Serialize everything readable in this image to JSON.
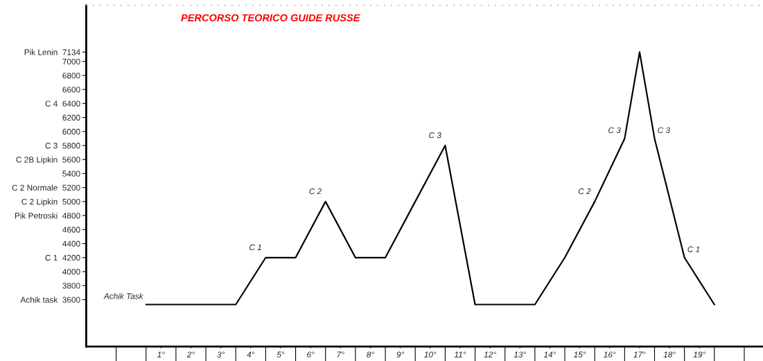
{
  "chart_data": {
    "type": "line",
    "title": "PERCORSO TEORICO GUIDE RUSSE",
    "x": [
      0.5,
      3.5,
      4.5,
      5.5,
      6.5,
      7.5,
      8.5,
      9.5,
      10.5,
      11.5,
      13.5,
      14.5,
      15.5,
      16.5,
      17,
      17.5,
      18.5,
      19.5
    ],
    "series": [
      {
        "color": "#000000",
        "values": [
          3530,
          3530,
          4200,
          4200,
          5000,
          4200,
          4200,
          5000,
          5800,
          3530,
          3530,
          4200,
          5000,
          5900,
          7134,
          5900,
          4200,
          3530
        ]
      }
    ],
    "xlim": [
      -1.5,
      21.1
    ],
    "xticks": [
      {
        "value": 1,
        "label": "1°"
      },
      {
        "value": 2,
        "label": "2°"
      },
      {
        "value": 3,
        "label": "3°"
      },
      {
        "value": 4,
        "label": "4°"
      },
      {
        "value": 5,
        "label": "5°"
      },
      {
        "value": 6,
        "label": "6°"
      },
      {
        "value": 7,
        "label": "7°"
      },
      {
        "value": 8,
        "label": "8°"
      },
      {
        "value": 9,
        "label": "9°"
      },
      {
        "value": 10,
        "label": "10°"
      },
      {
        "value": 11,
        "label": "11°"
      },
      {
        "value": 12,
        "label": "12°"
      },
      {
        "value": 13,
        "label": "13°"
      },
      {
        "value": 14,
        "label": "14°"
      },
      {
        "value": 15,
        "label": "15°"
      },
      {
        "value": 16,
        "label": "16°"
      },
      {
        "value": 17,
        "label": "17°"
      },
      {
        "value": 18,
        "label": "18°"
      },
      {
        "value": 19,
        "label": "19°"
      }
    ],
    "ylim": [
      2930,
      7800
    ],
    "yticks": [
      {
        "value": 3600,
        "label": "Achik task  3600"
      },
      3800,
      4000,
      {
        "value": 4200,
        "label": "C 1  4200"
      },
      4400,
      4600,
      {
        "value": 4800,
        "label": "Pik Petroski  4800"
      },
      {
        "value": 5000,
        "label": "C 2 Lipkin  5000"
      },
      {
        "value": 5200,
        "label": "C 2 Normale  5200"
      },
      5400,
      {
        "value": 5600,
        "label": "C 2B Lipkin  5600"
      },
      {
        "value": 5800,
        "label": "C 3  5800"
      },
      6000,
      6200,
      {
        "value": 6400,
        "label": "C 4  6400"
      },
      6600,
      6800,
      7000,
      {
        "value": 7134,
        "label": "Pik Lenin  7134"
      }
    ],
    "annotations": [
      {
        "text": "Achik Task",
        "x": 0.5,
        "y": 3530
      },
      {
        "text": "C 1",
        "x": 4.5,
        "y": 4200
      },
      {
        "text": "C 2",
        "x": 6.5,
        "y": 5000
      },
      {
        "text": "C 3",
        "x": 10.5,
        "y": 5800
      },
      {
        "text": "C 2",
        "x": 15.5,
        "y": 5000
      },
      {
        "text": "C 3",
        "x": 16.5,
        "y": 5900
      },
      {
        "text": "C 3",
        "x": 17.5,
        "y": 5900
      },
      {
        "text": "C 1",
        "x": 18.5,
        "y": 4200
      }
    ],
    "grid": false,
    "legend": false,
    "marker": "none",
    "line_style": "solid"
  }
}
